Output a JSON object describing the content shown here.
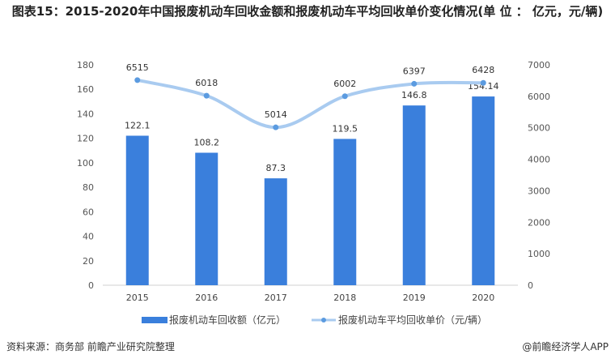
{
  "chart_data": {
    "type": "bar+line",
    "title": "图表15：2015-2020年中国报废机动车回收金额和报废机动车平均回收单价变化情况(单 位 ： 亿元，元/辆)",
    "categories": [
      "2015",
      "2016",
      "2017",
      "2018",
      "2019",
      "2020"
    ],
    "series": [
      {
        "name": "报废机动车回收额（亿元）",
        "type": "bar",
        "axis": "left",
        "values": [
          122.1,
          108.2,
          87.3,
          119.5,
          146.8,
          154.14
        ],
        "labels": [
          "122.1",
          "108.2",
          "87.3",
          "119.5",
          "146.8",
          "154.14"
        ],
        "color": "#3a7fdc"
      },
      {
        "name": "报废机动车平均回收单价（元/辆）",
        "type": "line",
        "smooth": true,
        "axis": "right",
        "values": [
          6515,
          6018,
          5014,
          6002,
          6397,
          6428
        ],
        "labels": [
          "6515",
          "6018",
          "5014",
          "6002",
          "6397",
          "6428"
        ],
        "color": "#a9cbf0",
        "marker_color": "#5b9be0"
      }
    ],
    "y_left": {
      "range": [
        0,
        180
      ],
      "ticks": [
        "0",
        "20",
        "40",
        "60",
        "80",
        "100",
        "120",
        "140",
        "160",
        "180"
      ]
    },
    "y_right": {
      "range": [
        0,
        7000
      ],
      "ticks": [
        "0",
        "1000",
        "2000",
        "3000",
        "4000",
        "5000",
        "6000",
        "7000"
      ]
    },
    "grid": false,
    "legend": "bottom"
  },
  "footer": {
    "source": "资料来源：商务部 前瞻产业研究院整理",
    "brand": "@前瞻经济学人APP"
  }
}
